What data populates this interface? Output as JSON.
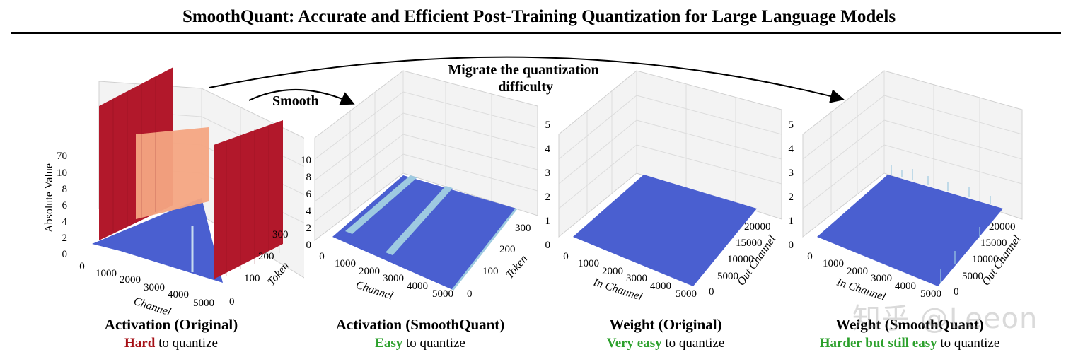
{
  "title": "SmoothQuant: Accurate and Efficient Post-Training Quantization for Large Language Models",
  "arrows": {
    "smooth_label": "Smooth",
    "migrate_label_line1": "Migrate the quantization",
    "migrate_label_line2": "difficulty"
  },
  "panels": [
    {
      "id": "act-orig",
      "title": "Activation (Original)",
      "difficulty": "Hard",
      "difficulty_rest": " to quantize",
      "ylabel": "Absolute Value",
      "z_ticks": [
        "0",
        "2",
        "4",
        "6",
        "8",
        "10",
        "70"
      ],
      "x_title": "Channel",
      "x_ticks": [
        "0",
        "1000",
        "2000",
        "3000",
        "4000",
        "5000"
      ],
      "y_title": "Token",
      "y_ticks": [
        "0",
        "100",
        "200",
        "300"
      ]
    },
    {
      "id": "act-smooth",
      "title": "Activation (SmoothQuant)",
      "difficulty": "Easy",
      "difficulty_rest": " to quantize",
      "z_ticks": [
        "0",
        "2",
        "4",
        "6",
        "8",
        "10"
      ],
      "x_title": "Channel",
      "x_ticks": [
        "0",
        "1000",
        "2000",
        "3000",
        "4000",
        "5000"
      ],
      "y_title": "Token",
      "y_ticks": [
        "0",
        "100",
        "200",
        "300"
      ]
    },
    {
      "id": "w-orig",
      "title": "Weight (Original)",
      "difficulty": "Very easy",
      "difficulty_rest": " to quantize",
      "z_ticks": [
        "0",
        "1",
        "2",
        "3",
        "4",
        "5"
      ],
      "x_title": "In Channel",
      "x_ticks": [
        "0",
        "1000",
        "2000",
        "3000",
        "4000",
        "5000"
      ],
      "y_title": "Out Channel",
      "y_ticks": [
        "0",
        "5000",
        "10000",
        "15000",
        "20000"
      ]
    },
    {
      "id": "w-smooth",
      "title": "Weight (SmoothQuant)",
      "difficulty": "Harder but still easy",
      "difficulty_rest": " to quantize",
      "z_ticks": [
        "0",
        "1",
        "2",
        "3",
        "4",
        "5"
      ],
      "x_title": "In Channel",
      "x_ticks": [
        "0",
        "1000",
        "2000",
        "3000",
        "4000",
        "5000"
      ],
      "y_title": "Out Channel",
      "y_ticks": [
        "0",
        "5000",
        "10000",
        "15000",
        "20000"
      ]
    }
  ],
  "colors": {
    "low": "#4a5fd0",
    "mid": "#f4a582",
    "high": "#b2182b",
    "easy": "#2ca02c",
    "hard": "#a50f15"
  },
  "watermark": "知乎 @Leeon"
}
